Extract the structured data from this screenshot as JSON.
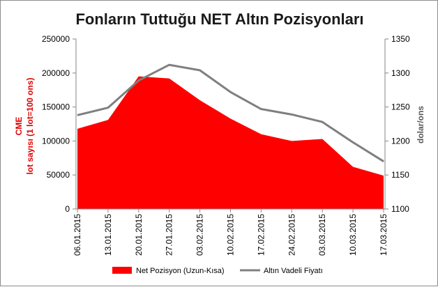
{
  "chart_data": {
    "type": "area",
    "title": "Fonların Tuttuğu NET Altın Pozisyonları",
    "categories": [
      "06.01.2015",
      "13.01.2015",
      "20.01.2015",
      "27.01.2015",
      "03.02.2015",
      "10.02.2015",
      "17.02.2015",
      "24.02.2015",
      "03.03.2015",
      "10.03.2015",
      "17.03.2015"
    ],
    "y_left": {
      "label_line1": "CME",
      "label_line2": "lot sayısı (1 lot=100 ons)",
      "ylim": [
        0,
        250000
      ],
      "ticks": [
        "0",
        "50000",
        "100000",
        "150000",
        "200000",
        "250000"
      ]
    },
    "y_right": {
      "label": "dolar/ons",
      "ylim": [
        1100,
        1350
      ],
      "ticks": [
        "1100",
        "1150",
        "1200",
        "1250",
        "1300",
        "1350"
      ]
    },
    "series": [
      {
        "name": "Net Pozisyon (Uzun-Kısa)",
        "type": "area",
        "axis": "left",
        "color": "#ff0000",
        "values": [
          118000,
          131000,
          195000,
          192000,
          160000,
          133000,
          110000,
          100000,
          103000,
          62000,
          49000
        ]
      },
      {
        "name": "Altın Vadeli Fiyatı",
        "type": "line",
        "axis": "right",
        "color": "#7f7f7f",
        "values": [
          1238,
          1249,
          1289,
          1312,
          1304,
          1272,
          1247,
          1239,
          1228,
          1198,
          1170
        ]
      }
    ],
    "grid": false,
    "legend_position": "bottom"
  }
}
